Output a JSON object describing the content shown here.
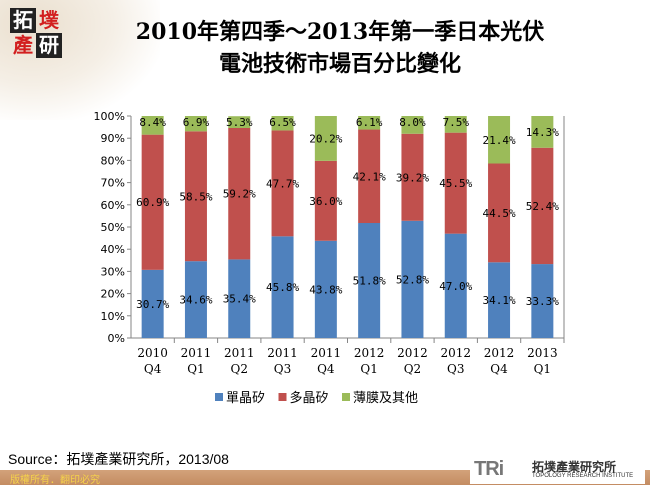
{
  "header": {
    "logo_text": [
      "拓",
      "墣",
      "產",
      "研"
    ],
    "title_line1": "2010年第四季～2013年第一季日本光伏",
    "title_line2": "電池技術市場百分比變化"
  },
  "chart_data": {
    "type": "bar",
    "stacked": true,
    "percent": true,
    "title": "2010年第四季～2013年第一季日本光伏電池技術市場百分比變化",
    "categories": [
      [
        "2010",
        "Q4"
      ],
      [
        "2011",
        "Q1"
      ],
      [
        "2011",
        "Q2"
      ],
      [
        "2011",
        "Q3"
      ],
      [
        "2011",
        "Q4"
      ],
      [
        "2012",
        "Q1"
      ],
      [
        "2012",
        "Q2"
      ],
      [
        "2012",
        "Q3"
      ],
      [
        "2012",
        "Q4"
      ],
      [
        "2013",
        "Q1"
      ]
    ],
    "ylim": [
      0,
      100
    ],
    "yticks": [
      "0%",
      "10%",
      "20%",
      "30%",
      "40%",
      "50%",
      "60%",
      "70%",
      "80%",
      "90%",
      "100%"
    ],
    "grid": false,
    "legend_position": "bottom",
    "series": [
      {
        "name": "單晶矽",
        "color": "#4f81bd",
        "values": [
          30.7,
          34.6,
          35.4,
          45.8,
          43.8,
          51.8,
          52.8,
          47.0,
          34.1,
          33.3
        ]
      },
      {
        "name": "多晶矽",
        "color": "#c0504d",
        "values": [
          60.9,
          58.5,
          59.2,
          47.7,
          36.0,
          42.1,
          39.2,
          45.5,
          44.5,
          52.4
        ]
      },
      {
        "name": "薄膜及其他",
        "color": "#9bbb59",
        "values": [
          8.4,
          6.9,
          5.3,
          6.5,
          20.2,
          6.1,
          8.0,
          7.5,
          21.4,
          14.3
        ]
      }
    ]
  },
  "footer": {
    "source": "Source：拓墣產業研究所，2013/08",
    "copyright": "版權所有．翻印必究",
    "institute_logo": "TRi",
    "institute_zh": "拓墣產業研究所",
    "institute_en": "TOPOLOGY RESEARCH INSTITUTE"
  }
}
